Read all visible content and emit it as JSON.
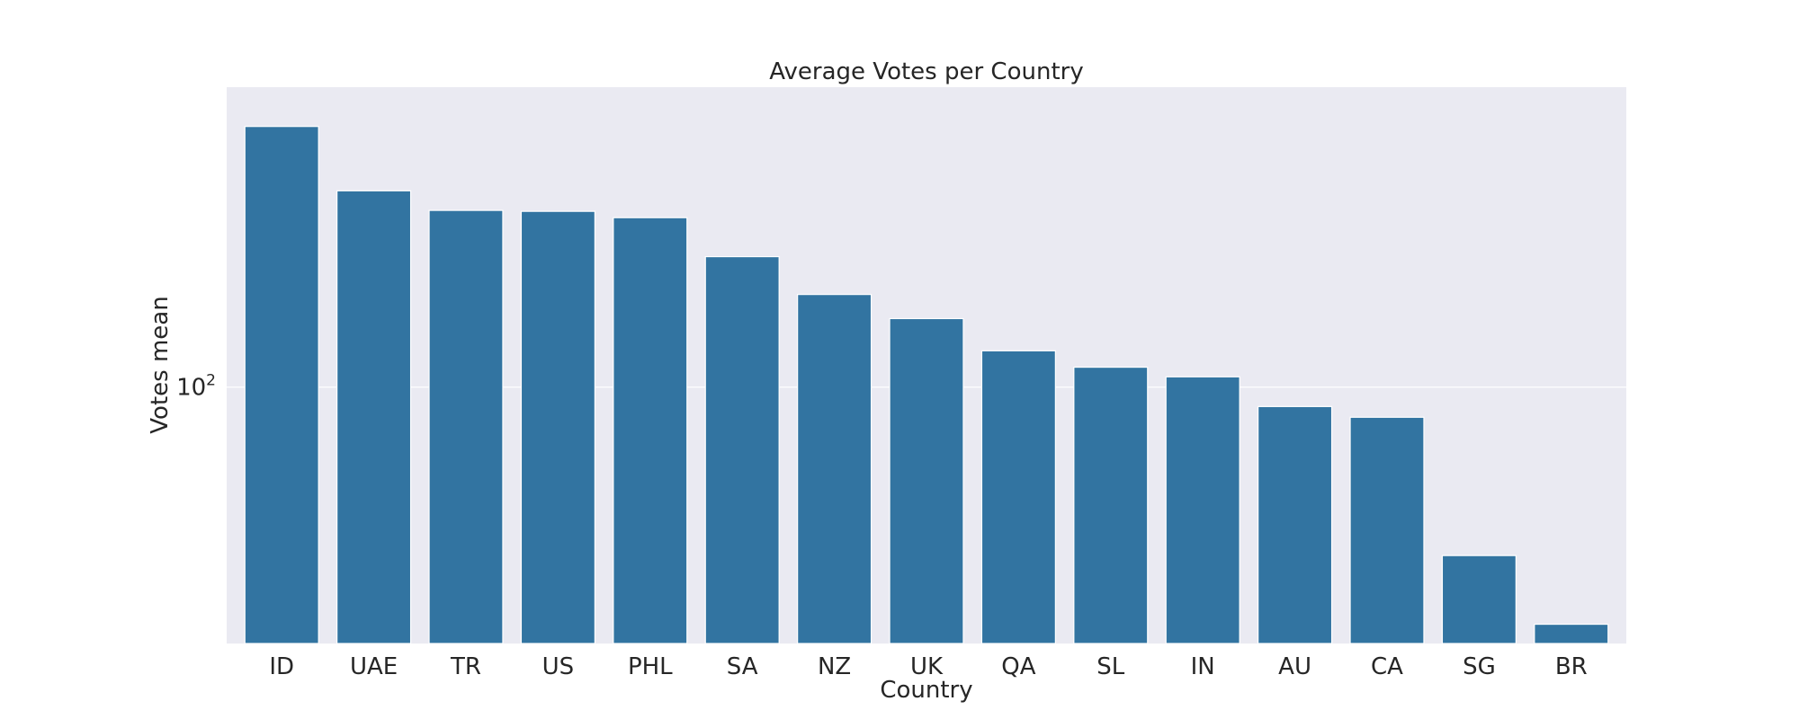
{
  "chart_data": {
    "type": "bar",
    "title": "Average Votes per Country",
    "xlabel": "Country",
    "ylabel": "Votes mean",
    "yscale": "log",
    "grid": true,
    "categories": [
      "ID",
      "UAE",
      "TR",
      "US",
      "PHL",
      "SA",
      "NZ",
      "UK",
      "QA",
      "SL",
      "IN",
      "AU",
      "CA",
      "SG",
      "BR"
    ],
    "values": [
      556,
      364,
      320,
      318,
      305,
      236,
      184,
      157,
      127,
      114,
      107,
      88,
      82,
      33,
      21
    ],
    "ylim": [
      18.5,
      720
    ],
    "yticks": [
      {
        "value": 100,
        "base": "10",
        "exponent": "2"
      }
    ],
    "colors": {
      "bar": "#3274a1",
      "plot_background": "#eaeaf2",
      "grid": "#ffffff",
      "text": "#262626"
    }
  }
}
